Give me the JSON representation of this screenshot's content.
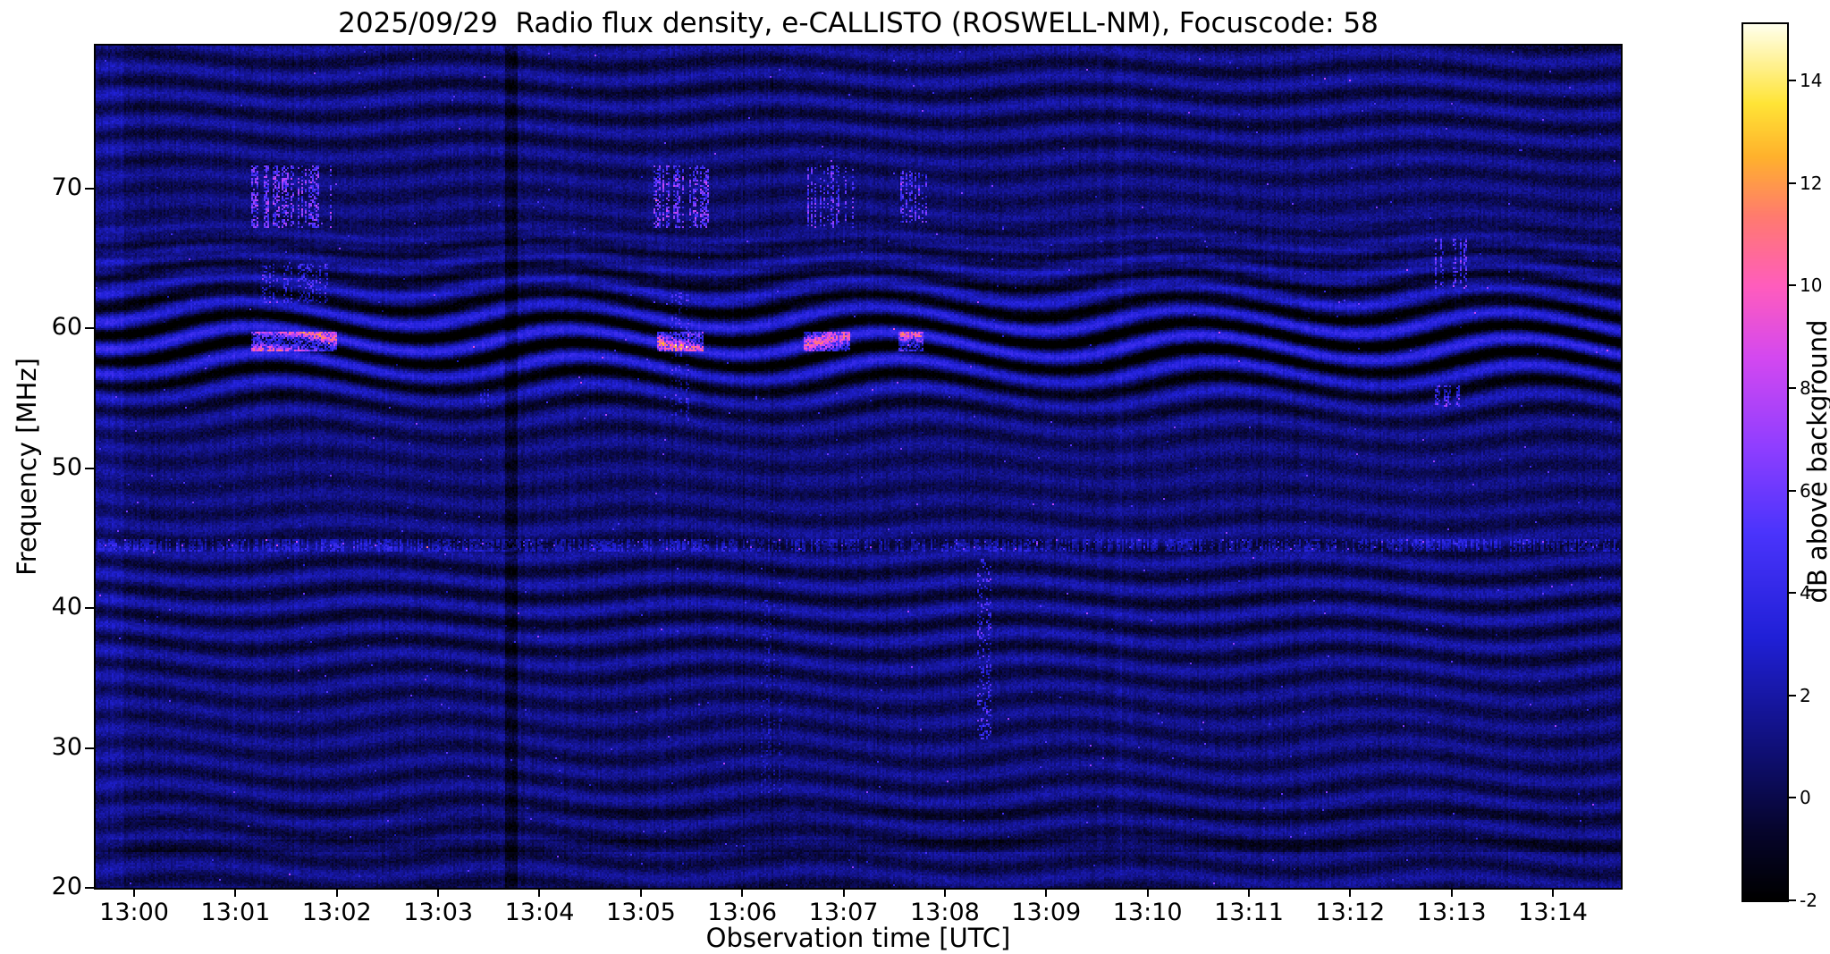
{
  "chart_data": {
    "type": "heatmap",
    "title": "2025/09/29  Radio flux density, e-CALLISTO (ROSWELL-NM), Focuscode: 58",
    "xlabel": "Observation time [UTC]",
    "ylabel": "Frequency [MHz]",
    "x_tick_labels": [
      "13:00",
      "13:01",
      "13:02",
      "13:03",
      "13:04",
      "13:05",
      "13:06",
      "13:07",
      "13:08",
      "13:09",
      "13:10",
      "13:11",
      "13:12",
      "13:13",
      "13:14"
    ],
    "x_range_minutes": [
      0,
      15.05
    ],
    "x_first_tick_offset_min": 0.38,
    "y_tick_values": [
      20,
      30,
      40,
      50,
      60,
      70
    ],
    "ylim": [
      20,
      80.2
    ],
    "grid": false,
    "colorbar": {
      "label": "dB above background",
      "tick_values": [
        -2,
        0,
        2,
        4,
        6,
        8,
        10,
        12,
        14
      ],
      "vmin": -2,
      "vmax": 15.1,
      "colormap_stops": [
        {
          "t": 0.0,
          "rgb": [
            0,
            0,
            0
          ]
        },
        {
          "t": 0.08,
          "rgb": [
            6,
            5,
            45
          ]
        },
        {
          "t": 0.18,
          "rgb": [
            16,
            16,
            125
          ]
        },
        {
          "t": 0.3,
          "rgb": [
            32,
            32,
            215
          ]
        },
        {
          "t": 0.42,
          "rgb": [
            75,
            52,
            252
          ]
        },
        {
          "t": 0.52,
          "rgb": [
            145,
            62,
            255
          ]
        },
        {
          "t": 0.62,
          "rgb": [
            212,
            72,
            240
          ]
        },
        {
          "t": 0.7,
          "rgb": [
            255,
            92,
            190
          ]
        },
        {
          "t": 0.78,
          "rgb": [
            255,
            122,
            112
          ]
        },
        {
          "t": 0.85,
          "rgb": [
            255,
            178,
            44
          ]
        },
        {
          "t": 0.91,
          "rgb": [
            255,
            228,
            54
          ]
        },
        {
          "t": 1.0,
          "rgb": [
            255,
            255,
            235
          ]
        }
      ]
    },
    "background": {
      "description": "Dark blue noise field with undulating horizontal interference fringes; strongest dark banding near 57-62 MHz; fine banded texture 62-67 MHz; persistent speckled RFI line at 44.5 MHz; dark horizontal lines near 23 and 25 MHz; faint dark vertical line at 13:04.",
      "base_db": 0.75,
      "noise_db": 0.62,
      "fringe_period_mhz": 1.9,
      "fringe_amp_db": 0.95,
      "fringe_wobble_period_min": 3.1,
      "fringe_wobble_amp_rad": 1.1,
      "band59_dark_db": 1.6
    },
    "features": [
      {
        "label": "burst blocks 68-71 MHz @13:02",
        "t": [
          1.55,
          2.3
        ],
        "f": [
          67.3,
          71.6
        ],
        "amp_db": 5.5,
        "style": "speckle",
        "density": 0.3
      },
      {
        "label": "speckle 62-64 MHz @13:02",
        "t": [
          1.65,
          2.3
        ],
        "f": [
          62.0,
          64.6
        ],
        "amp_db": 3.5,
        "style": "speckle",
        "density": 0.2
      },
      {
        "label": "bright line 59 MHz @13:02",
        "t": [
          1.55,
          2.35
        ],
        "f": [
          58.55,
          59.65
        ],
        "amp_db": 6.5,
        "style": "hline",
        "density": 0.75
      },
      {
        "label": "burst blocks 68-71 MHz @13:06",
        "t": [
          5.52,
          6.02
        ],
        "f": [
          67.3,
          71.6
        ],
        "amp_db": 5.5,
        "style": "speckle",
        "density": 0.3
      },
      {
        "label": "bright line 59 MHz @13:06",
        "t": [
          5.55,
          5.98
        ],
        "f": [
          58.55,
          59.65
        ],
        "amp_db": 6.5,
        "style": "hline",
        "density": 0.75
      },
      {
        "label": "vertical streak @13:05.8",
        "t": [
          5.68,
          5.84
        ],
        "f": [
          53.5,
          62.5
        ],
        "amp_db": 2.8,
        "style": "vstreak",
        "density": 0.3
      },
      {
        "label": "burst blocks 68-71 MHz @13:07.2",
        "t": [
          7.0,
          7.45
        ],
        "f": [
          67.3,
          71.6
        ],
        "amp_db": 5.0,
        "style": "speckle",
        "density": 0.28
      },
      {
        "label": "bright line 59 MHz @13:07.2",
        "t": [
          7.0,
          7.42
        ],
        "f": [
          58.55,
          59.65
        ],
        "amp_db": 6.0,
        "style": "hline",
        "density": 0.7
      },
      {
        "label": "burst 70 MHz @13:08",
        "t": [
          7.95,
          8.2
        ],
        "f": [
          67.8,
          71.2
        ],
        "amp_db": 5.0,
        "style": "speckle",
        "density": 0.3
      },
      {
        "label": "bright line 59 MHz @13:08",
        "t": [
          7.93,
          8.15
        ],
        "f": [
          58.55,
          59.65
        ],
        "amp_db": 6.0,
        "style": "hline",
        "density": 0.7
      },
      {
        "label": "dotted vertical streak @13:08.7",
        "t": [
          8.65,
          8.84
        ],
        "f": [
          30.8,
          43.6
        ],
        "amp_db": 4.5,
        "style": "vstreak",
        "density": 0.22
      },
      {
        "label": "speckle 64-66 MHz @13:13.3",
        "t": [
          13.2,
          13.55
        ],
        "f": [
          63.0,
          66.3
        ],
        "amp_db": 4.5,
        "style": "speckle",
        "density": 0.25
      },
      {
        "label": "spot 55 MHz @13:13.3",
        "t": [
          13.22,
          13.45
        ],
        "f": [
          54.6,
          55.8
        ],
        "amp_db": 4.5,
        "style": "speckle",
        "density": 0.3
      },
      {
        "label": "spot 55 MHz @13:03.8",
        "t": [
          3.7,
          3.86
        ],
        "f": [
          54.4,
          55.6
        ],
        "amp_db": 2.6,
        "style": "speckle",
        "density": 0.3
      },
      {
        "label": "RFI line 44.5 MHz",
        "t": [
          0,
          15.05
        ],
        "f": [
          44.25,
          44.85
        ],
        "amp_db": 2.0,
        "style": "speckle",
        "density": 0.45
      },
      {
        "label": "RFI line bright dots 44.5 MHz",
        "t": [
          0,
          15.05
        ],
        "f": [
          44.3,
          44.8
        ],
        "amp_db": 4.5,
        "style": "speckle",
        "density": 0.02
      },
      {
        "label": "faint streaks @13:06.6",
        "t": [
          6.55,
          6.75
        ],
        "f": [
          27.0,
          40.5
        ],
        "amp_db": 1.8,
        "style": "vstreak",
        "density": 0.18
      },
      {
        "label": "dark vertical line @13:04",
        "t": [
          4.05,
          4.13
        ],
        "f": [
          20,
          80.2
        ],
        "amp_db": -1.4,
        "style": "solid",
        "density": 1
      },
      {
        "label": "dark line 23 MHz",
        "t": [
          0,
          15.05
        ],
        "f": [
          22.8,
          23.35
        ],
        "amp_db": -0.9,
        "style": "solid",
        "density": 1
      },
      {
        "label": "dark line 25.2 MHz",
        "t": [
          0,
          15.05
        ],
        "f": [
          25.0,
          25.5
        ],
        "amp_db": -0.5,
        "style": "solid",
        "density": 1
      },
      {
        "label": "bright left edge",
        "t": [
          0,
          0.25
        ],
        "f": [
          20,
          80.2
        ],
        "amp_db": 0.6,
        "style": "solid",
        "density": 1
      }
    ]
  }
}
